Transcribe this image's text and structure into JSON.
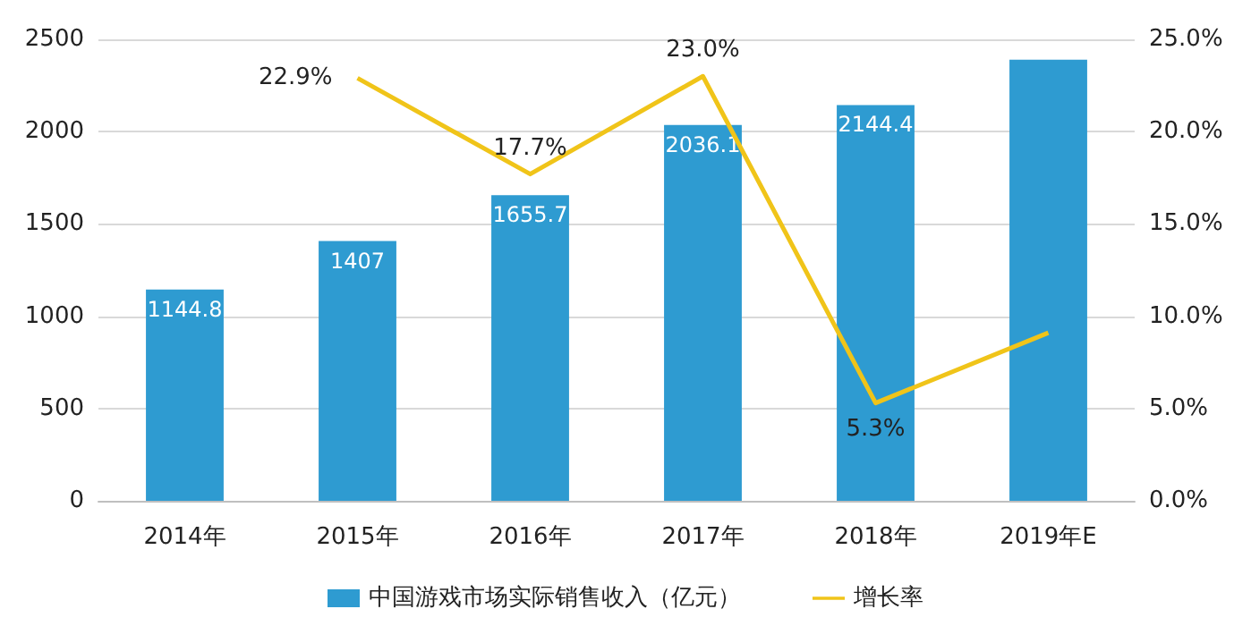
{
  "chart_data": {
    "type": "bar",
    "categories": [
      "2014年",
      "2015年",
      "2016年",
      "2017年",
      "2018年",
      "2019年E"
    ],
    "series": [
      {
        "name": "中国游戏市场实际销售收入（亿元）",
        "color": "#2e9bd1",
        "values": [
          1144.8,
          1407,
          1655.7,
          2036.1,
          2144.4,
          2390
        ],
        "value_labels": [
          "1144.8",
          "1407",
          "1655.7",
          "2036.1",
          "2144.4",
          null
        ]
      },
      {
        "name": "增长率",
        "type": "line",
        "axis": "y2",
        "color": "#f0c419",
        "values": [
          null,
          22.9,
          17.7,
          23.0,
          5.3,
          9.1
        ],
        "value_labels": [
          null,
          "22.9%",
          "17.7%",
          "23.0%",
          "5.3%",
          null
        ]
      }
    ],
    "ylim": [
      0,
      2500
    ],
    "yticks": [
      0,
      500,
      1000,
      1500,
      2000,
      2500
    ],
    "y2lim": [
      0,
      25
    ],
    "y2ticks": [
      {
        "value": 0,
        "label": "0.0%"
      },
      {
        "value": 5,
        "label": "5.0%"
      },
      {
        "value": 10,
        "label": "10.0%"
      },
      {
        "value": 15,
        "label": "15.0%"
      },
      {
        "value": 20,
        "label": "20.0%"
      },
      {
        "value": 25,
        "label": "25.0%"
      }
    ],
    "grid": "y",
    "legend": "bottom",
    "marker": "none",
    "line_style": "solid"
  }
}
